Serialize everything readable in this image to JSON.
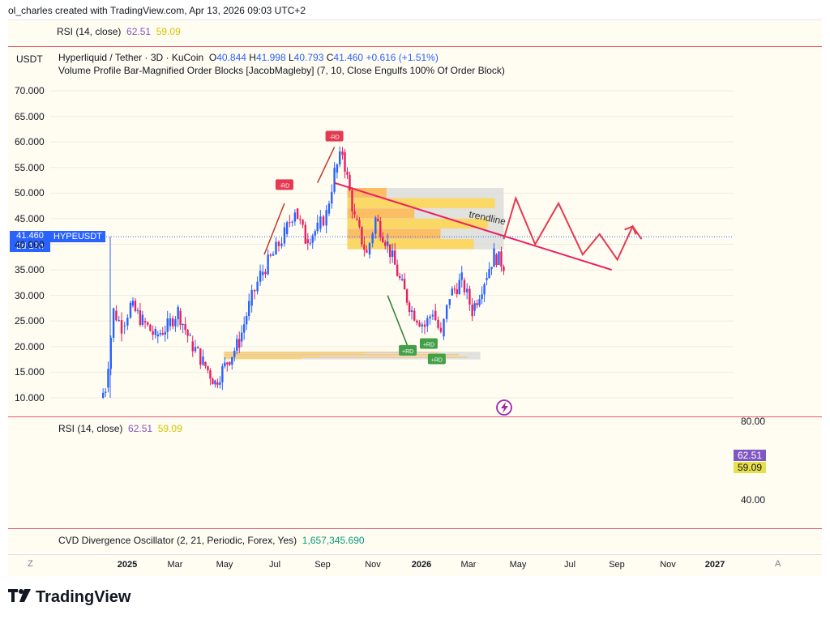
{
  "header": {
    "text": "ol_charles created with TradingView.com, Apr 13, 2026 09:03 UTC+2"
  },
  "rsi_top": {
    "label": "RSI (14, close)",
    "value1": "62.51",
    "value2": "59.09"
  },
  "legend": {
    "currency": "USDT",
    "symbol": "Hyperliquid / Tether · 3D · KuCoin",
    "o_label": "O",
    "o": "40.844",
    "h_label": "H",
    "h": "41.998",
    "l_label": "L",
    "l": "40.793",
    "c_label": "C",
    "c": "41.460",
    "change": "+0.616 (+1.51%)",
    "indicator": "Volume Profile Bar-Magnified Order Blocks [JacobMagleby] (7, 10, Close Engulfs 100% Of Order Block)"
  },
  "price_tag": {
    "price": "41.460",
    "countdown": "2d 17h",
    "symbol": "HYPEUSDT"
  },
  "annotation": {
    "trendline": "trendline"
  },
  "badges": {
    "bear": "-RD",
    "bull": "+RD"
  },
  "rsi_panel": {
    "label": "RSI (14, close)",
    "value1": "62.51",
    "value2": "59.09",
    "tick_hi": "80.00",
    "tick_lo": "40.00"
  },
  "cvd": {
    "label": "CVD Divergence Oscillator (2, 21, Periodic, Forex, Yes)",
    "value": "1,657,345.690"
  },
  "corners": {
    "left": "Z",
    "right": "A"
  },
  "brand": {
    "name": "TradingView"
  },
  "colors": {
    "up": "#2962ff",
    "down": "#e91e63",
    "rsi": "#7e57c2",
    "rsi_ma": "#e8e04a",
    "trend": "#e91e63"
  },
  "chart_data": {
    "type": "candlestick",
    "y_axis": {
      "ticks": [
        "70.000",
        "65.000",
        "60.000",
        "55.000",
        "50.000",
        "45.000",
        "40.000",
        "35.000",
        "30.000",
        "25.000",
        "20.000",
        "15.000",
        "10.000"
      ],
      "range": [
        8,
        73
      ]
    },
    "x_axis": {
      "ticks": [
        "2025",
        "Mar",
        "May",
        "Jul",
        "Sep",
        "Nov",
        "2026",
        "Mar",
        "May",
        "Jul",
        "Sep",
        "Nov",
        "2027"
      ]
    },
    "price_path": [
      [
        "2024-11-29",
        10,
        14
      ],
      [
        "2024-12-05",
        12,
        29
      ],
      [
        "2024-12-15",
        27,
        26
      ],
      [
        "2024-12-25",
        24,
        28
      ],
      [
        "2025-01-05",
        28,
        25
      ],
      [
        "2025-01-20",
        25,
        22
      ],
      [
        "2025-02-05",
        22,
        24
      ],
      [
        "2025-02-20",
        24,
        27
      ],
      [
        "2025-03-05",
        27,
        21
      ],
      [
        "2025-03-20",
        21,
        17
      ],
      [
        "2025-04-05",
        17,
        13
      ],
      [
        "2025-04-20",
        13,
        17
      ],
      [
        "2025-05-05",
        17,
        21
      ],
      [
        "2025-05-20",
        21,
        28
      ],
      [
        "2025-06-01",
        28,
        34
      ],
      [
        "2025-06-15",
        34,
        38
      ],
      [
        "2025-07-01",
        38,
        42
      ],
      [
        "2025-07-15",
        42,
        47
      ],
      [
        "2025-07-28",
        47,
        41
      ],
      [
        "2025-08-10",
        41,
        43
      ],
      [
        "2025-08-25",
        43,
        46
      ],
      [
        "2025-09-05",
        46,
        54
      ],
      [
        "2025-09-15",
        54,
        58
      ],
      [
        "2025-09-25",
        58,
        45
      ],
      [
        "2025-10-10",
        45,
        38
      ],
      [
        "2025-10-25",
        38,
        45
      ],
      [
        "2025-11-05",
        45,
        40
      ],
      [
        "2025-11-20",
        40,
        33
      ],
      [
        "2025-12-05",
        33,
        27
      ],
      [
        "2025-12-20",
        27,
        24
      ],
      [
        "2026-01-05",
        24,
        27
      ],
      [
        "2026-01-15",
        27,
        22
      ],
      [
        "2026-01-25",
        22,
        30
      ],
      [
        "2026-02-05",
        30,
        33
      ],
      [
        "2026-02-20",
        33,
        27
      ],
      [
        "2026-03-05",
        27,
        33
      ],
      [
        "2026-03-20",
        33,
        38
      ],
      [
        "2026-04-01",
        38,
        36
      ],
      [
        "2026-04-13",
        36,
        41.46
      ]
    ],
    "trendline": [
      [
        "2025-09-15",
        52
      ],
      [
        "2026-08-25",
        35
      ]
    ],
    "projection": [
      [
        "2026-04-13",
        41
      ],
      [
        "2026-04-28",
        49
      ],
      [
        "2026-05-22",
        40
      ],
      [
        "2026-06-20",
        48
      ],
      [
        "2026-07-20",
        38
      ],
      [
        "2026-08-10",
        42
      ],
      [
        "2026-09-01",
        37
      ],
      [
        "2026-09-20",
        43.5
      ],
      [
        "2026-10-01",
        41
      ]
    ],
    "order_blocks": [
      {
        "from": "2025-10-01",
        "to": "2026-04-13",
        "low": 39,
        "high": 51,
        "kind": "bearish"
      },
      {
        "from": "2025-05-01",
        "to": "2026-03-15",
        "low": 17.5,
        "high": 19,
        "kind": "bullish"
      }
    ],
    "rsi": {
      "value": 62.51,
      "ma": 59.09,
      "band": [
        30,
        70
      ]
    }
  }
}
